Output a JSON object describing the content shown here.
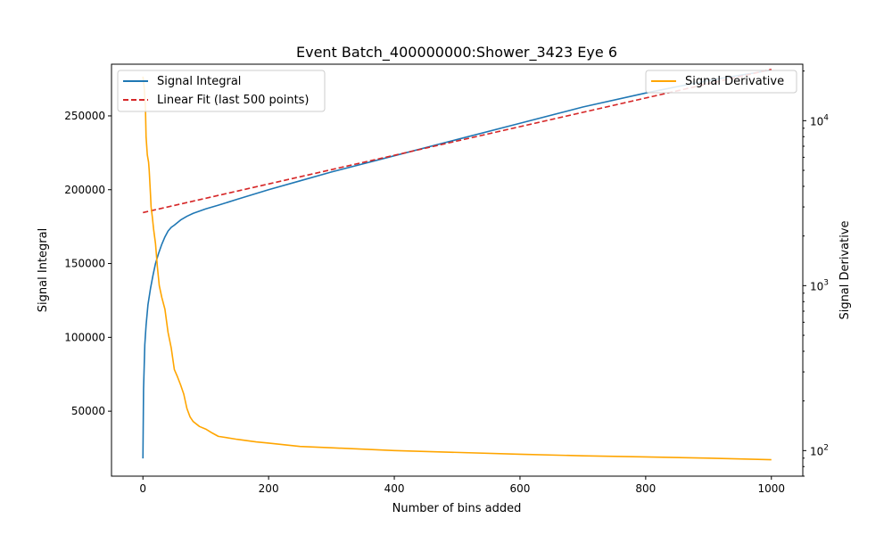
{
  "chart_data": {
    "type": "line",
    "title": "Event Batch_400000000:Shower_3423 Eye 6",
    "xlabel": "Number of bins added",
    "ylabel": "Signal Integral",
    "y2label": "Signal Derivative",
    "xlim": [
      -50,
      1050
    ],
    "ylim": [
      6000,
      285000
    ],
    "y2lim": [
      70,
      22000
    ],
    "y2scale": "log",
    "grid": false,
    "x_ticks": [
      0,
      200,
      400,
      600,
      800,
      1000
    ],
    "x_tick_labels": [
      "0",
      "200",
      "400",
      "600",
      "800",
      "1000"
    ],
    "y_ticks": [
      50000,
      100000,
      150000,
      200000,
      250000
    ],
    "y_tick_labels": [
      "50000",
      "100000",
      "150000",
      "200000",
      "250000"
    ],
    "y2_ticks": [
      100,
      1000,
      10000
    ],
    "y2_tick_base": "10",
    "y2_tick_exponents": [
      "2",
      "3",
      "4"
    ],
    "legend_left": {
      "placement": "upper-left",
      "entries": [
        "Signal Integral",
        "Linear Fit (last 500 points)"
      ]
    },
    "legend_right": {
      "placement": "upper-right",
      "entries": [
        "Signal Derivative"
      ]
    },
    "series": [
      {
        "name": "Signal Integral",
        "axis": "left",
        "color": "#1f77b4",
        "style": "solid",
        "x": [
          0,
          1,
          2,
          3,
          5,
          8,
          12,
          16,
          20,
          25,
          30,
          35,
          40,
          45,
          50,
          60,
          70,
          80,
          100,
          120,
          150,
          200,
          250,
          300,
          400,
          500,
          600,
          700,
          800,
          900,
          1000
        ],
        "y": [
          18000,
          65000,
          80000,
          95000,
          108000,
          122000,
          133000,
          142000,
          150000,
          157000,
          163000,
          168000,
          172000,
          174500,
          176000,
          179500,
          182000,
          184000,
          187000,
          189500,
          193500,
          200000,
          206000,
          212000,
          223000,
          234000,
          245000,
          256000,
          265500,
          274000,
          281000
        ]
      },
      {
        "name": "Linear Fit (last 500 points)",
        "axis": "left",
        "color": "#d62728",
        "style": "dashed",
        "x": [
          0,
          1000
        ],
        "y": [
          184500,
          281500
        ]
      },
      {
        "name": "Signal Derivative",
        "axis": "right",
        "color": "#ffa500",
        "style": "solid",
        "x": [
          0,
          2,
          4,
          5,
          7,
          9,
          10,
          12,
          13,
          15,
          17,
          20,
          23,
          26,
          30,
          35,
          40,
          45,
          50,
          55,
          60,
          65,
          70,
          75,
          80,
          90,
          100,
          110,
          120,
          150,
          180,
          200,
          250,
          300,
          400,
          500,
          600,
          700,
          800,
          900,
          1000
        ],
        "y": [
          18500,
          16000,
          12000,
          8000,
          6200,
          5600,
          5000,
          3600,
          3000,
          2600,
          2200,
          1800,
          1300,
          1000,
          850,
          720,
          520,
          420,
          310,
          280,
          250,
          220,
          180,
          160,
          150,
          140,
          135,
          128,
          122,
          117,
          113,
          111,
          106,
          104,
          100,
          97.5,
          95,
          93,
          91.5,
          90,
          88
        ]
      }
    ]
  }
}
